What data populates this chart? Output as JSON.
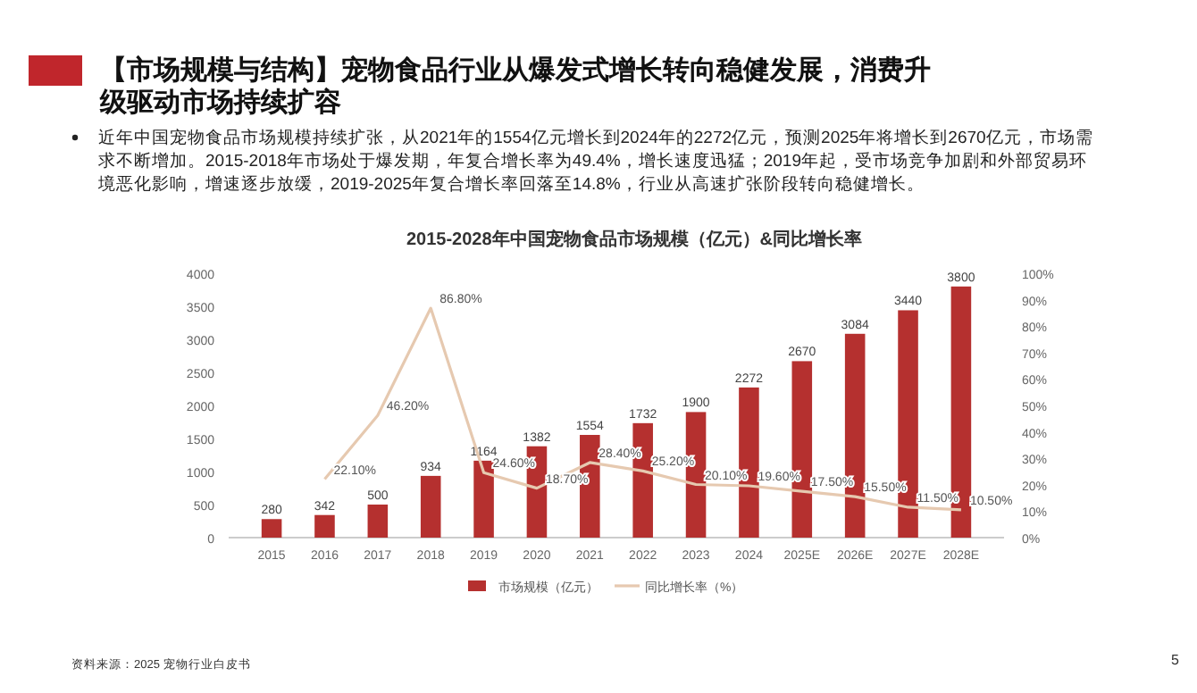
{
  "chart_data": {
    "type": "bar",
    "title": "【市场规模与结构】宠物食品行业从爆发式增长转向稳健发展，消费升级驱动市场持续扩容",
    "subtitle": "近年中国宠物食品市场规模持续扩张，从2021年的1554亿元增长到2024年的2272亿元，预测2025年将增长到2670亿元，市场需求不断增加。2015-2018年市场处于爆发期，年复合增长率为49.4%，增长速度迅猛；2019年起，受市场竞争加剧和外部贸易环境恶化影响，增速逐步放缓，2019-2025年复合增长率回落至14.8%，行业从高速扩张阶段转向稳健增长。",
    "annotations": [
      "2015-2028年中国宠物食品市场规模（亿元）&同比增长率",
      "资料来源：2025 宠物行业白皮书",
      "5"
    ],
    "categories": [
      "2015",
      "2016",
      "2017",
      "2018",
      "2019",
      "2020",
      "2021",
      "2022",
      "2023",
      "2024",
      "2025E",
      "2026E",
      "2027E",
      "2028E"
    ],
    "series": [
      {
        "name": "市场规模（亿元）",
        "color": "#b5302f",
        "values": [
          280,
          342,
          500,
          934,
          1164,
          1382,
          1554,
          1732,
          1900,
          2272,
          2670,
          3084,
          3440,
          3800
        ]
      },
      {
        "name": "同比增长率（%）",
        "type": "line",
        "axis": "y2",
        "color": "#e6c9b0",
        "values": [
          null,
          22.1,
          46.2,
          86.8,
          24.6,
          18.7,
          28.4,
          25.2,
          20.1,
          19.6,
          17.5,
          15.5,
          11.5,
          10.5
        ],
        "value_labels": [
          null,
          "22.10%",
          "46.20%",
          "86.80%",
          "24.60%",
          "18.70%",
          "28.40%",
          "25.20%",
          "20.10%",
          "19.60%",
          "17.50%",
          "15.50%",
          "11.50%",
          "10.50%"
        ]
      }
    ],
    "data_labels": true,
    "legend": "bottom",
    "grid": false,
    "ylim": [
      0,
      4000
    ],
    "yticks": [
      0,
      500,
      1000,
      1500,
      2000,
      2500,
      3000,
      3500,
      4000
    ],
    "y2lim": [
      0,
      100
    ],
    "y2ticks": [
      {
        "value": 0,
        "label": "0%"
      },
      {
        "value": 10,
        "label": "10%"
      },
      {
        "value": 20,
        "label": "20%"
      },
      {
        "value": 30,
        "label": "30%"
      },
      {
        "value": 40,
        "label": "40%"
      },
      {
        "value": 50,
        "label": "50%"
      },
      {
        "value": 60,
        "label": "60%"
      },
      {
        "value": 70,
        "label": "70%"
      },
      {
        "value": 80,
        "label": "80%"
      },
      {
        "value": 90,
        "label": "90%"
      },
      {
        "value": 100,
        "label": "100%"
      }
    ]
  }
}
